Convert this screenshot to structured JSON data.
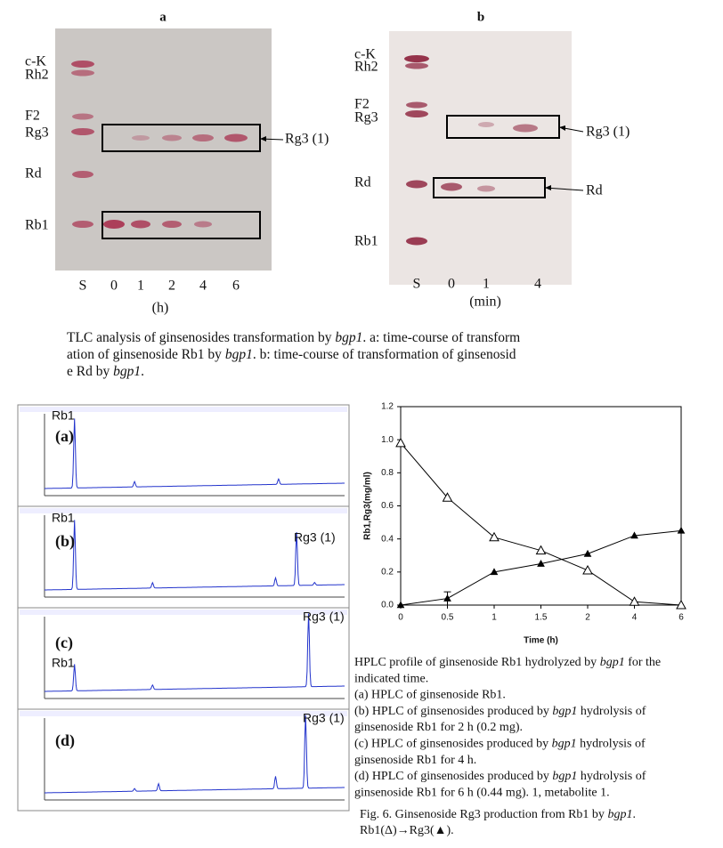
{
  "tlc_a": {
    "title": "a",
    "bands": [
      "c-K",
      "Rh2",
      "F2",
      "Rg3",
      "Rd",
      "Rb1"
    ],
    "lanes": [
      "S",
      "0",
      "1",
      "2",
      "4",
      "6"
    ],
    "unit": "(h)",
    "annotations": [
      "Rg3 (1)"
    ]
  },
  "tlc_b": {
    "title": "b",
    "bands": [
      "c-K",
      "Rh2",
      "F2",
      "Rg3",
      "Rd",
      "Rb1"
    ],
    "lanes": [
      "S",
      "0",
      "1",
      "4"
    ],
    "unit": "(min)",
    "annotations": [
      "Rg3 (1)",
      "Rd"
    ]
  },
  "tlc_caption": [
    [
      "TLC analysis of ginsenosides transformation by ",
      "bgp1",
      ". a: time-course of transform"
    ],
    [
      "ation of ginsenoside Rb1 by ",
      "bgp1",
      ". b: time-course of transformation of ginsenosid"
    ],
    [
      "e Rd by ",
      "bgp1",
      "."
    ]
  ],
  "hplc_panels": [
    {
      "label": "(a)",
      "peaks": [
        "Rb1"
      ]
    },
    {
      "label": "(b)",
      "peaks": [
        "Rb1",
        "Rg3 (1)"
      ]
    },
    {
      "label": "(c)",
      "peaks": [
        "Rb1",
        "Rg3 (1)"
      ]
    },
    {
      "label": "(d)",
      "peaks": [
        "Rg3 (1)"
      ]
    }
  ],
  "chart_data": {
    "type": "line",
    "x_label": "Time (h)",
    "y_label": "Rb1,Rg3(mg/ml)",
    "categories": [
      "0",
      "0.5",
      "1",
      "1.5",
      "2",
      "4",
      "6"
    ],
    "ylim": [
      0,
      1.2
    ],
    "yticks": [
      {
        "value": 0,
        "label": "0.0"
      },
      0.2,
      0.4,
      0.6,
      0.8,
      {
        "value": 1,
        "label": "1.0"
      },
      1.2
    ],
    "series": [
      {
        "color": "#000000",
        "marker": "triangle-open",
        "values": [
          0.98,
          0.65,
          0.41,
          0.33,
          0.21,
          0.02,
          0.0
        ]
      },
      {
        "color": "#000000",
        "marker": "triangle-filled",
        "values": [
          0.0,
          0.04,
          0.2,
          0.25,
          0.31,
          0.42,
          0.45
        ],
        "errors": [
          null,
          0.04,
          null,
          null,
          null,
          null,
          null
        ]
      }
    ]
  },
  "hplc_caption": [
    [
      "HPLC profile of ginsenoside Rb1 hydrolyzed by ",
      "bgp1",
      " for the"
    ],
    [
      "indicated time."
    ],
    [
      "(a) HPLC of ginsenoside Rb1."
    ],
    [
      "(b) HPLC of ginsenosides produced by ",
      "bgp1",
      " hydrolysis of"
    ],
    [
      "ginsenoside Rb1 for 2 h (0.2 mg)."
    ],
    [
      "(c) HPLC of ginsenosides produced by ",
      "bgp1",
      " hydrolysis of"
    ],
    [
      "ginsenoside Rb1 for 4 h."
    ],
    [
      "(d) HPLC of ginsenosides produced by ",
      "bgp1",
      " hydrolysis of"
    ],
    [
      "ginsenoside Rb1 for 6 h (0.44 mg). 1, metabolite 1."
    ]
  ],
  "figure_caption": [
    [
      "Fig. 6. Ginsenoside Rg3 production from Rb1 by ",
      "bgp1",
      "."
    ],
    [
      "Rb1(Δ)→Rg3(▲)."
    ]
  ]
}
